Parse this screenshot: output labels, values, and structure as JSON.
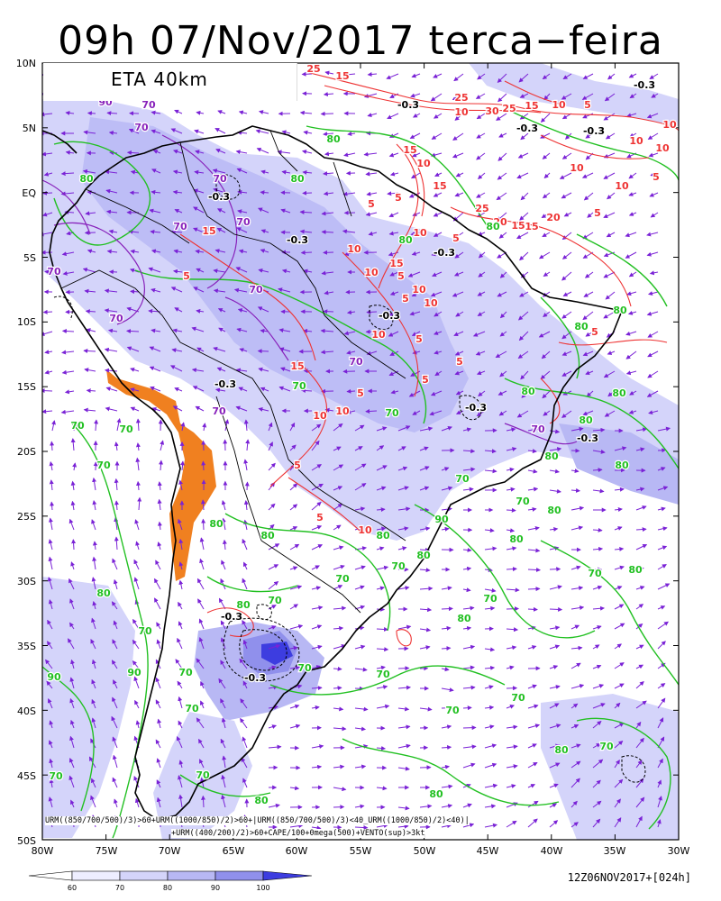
{
  "header": {
    "title": "09h 07/Nov/2017 terca−feira",
    "model_label": "ETA 40km"
  },
  "axes": {
    "lat_labels": [
      "10N",
      "5N",
      "EQ",
      "5S",
      "10S",
      "15S",
      "20S",
      "25S",
      "30S",
      "35S",
      "40S",
      "45S",
      "50S"
    ],
    "lon_labels": [
      "80W",
      "75W",
      "70W",
      "65W",
      "60W",
      "55W",
      "50W",
      "45W",
      "40W",
      "35W",
      "30W"
    ]
  },
  "map": {
    "region": "South America",
    "extent": {
      "lon": [
        -80,
        -30
      ],
      "lat": [
        -50,
        10
      ]
    },
    "contour_labels": {
      "cape_red": [
        "25",
        "15",
        "25",
        "10",
        "10",
        "30",
        "25",
        "15",
        "5",
        "10",
        "15",
        "10",
        "5",
        "5",
        "15",
        "20",
        "15",
        "10",
        "10",
        "5",
        "15",
        "10",
        "25",
        "20",
        "15",
        "5",
        "10",
        "10",
        "5",
        "5",
        "5",
        "15",
        "10",
        "15",
        "10",
        "10",
        "5",
        "5",
        "5",
        "10",
        "5",
        "10",
        "10",
        "5",
        "10",
        "5",
        "5",
        "10",
        "5"
      ],
      "urm_green": [
        "80",
        "80",
        "80",
        "80",
        "80",
        "80",
        "80",
        "80",
        "80",
        "70",
        "70",
        "70",
        "70",
        "70",
        "80",
        "80",
        "80",
        "70",
        "80",
        "70",
        "70",
        "80",
        "70",
        "80",
        "70",
        "80",
        "70",
        "80",
        "70",
        "70",
        "70",
        "90",
        "80",
        "70",
        "70",
        "80",
        "80",
        "70",
        "90",
        "90",
        "80",
        "70",
        "80",
        "70",
        "70",
        "80",
        "80",
        "80",
        "70",
        "70"
      ],
      "urm_purple": [
        "90",
        "70",
        "70",
        "70",
        "70",
        "70",
        "70",
        "70",
        "70",
        "70",
        "70",
        "70"
      ],
      "omega_black": [
        "-0.3",
        "-0.3",
        "-0.3",
        "-0.3",
        "-0.3",
        "-0.3",
        "-0.3",
        "-0.3",
        "-0.3",
        "-0.3",
        "-0.3",
        "-0.3",
        "-0.3"
      ]
    },
    "colors": {
      "shading_light": "#d4d4fa",
      "shading_mid": "#b8b8f4",
      "shading_dark": "#9090ec",
      "shading_max": "#3d3de0",
      "orange": "#f08020",
      "cape_contour": "#ee3333",
      "urm_contour": "#22c022",
      "purple_contour": "#8822bb",
      "wind_vectors": "#7a22d6",
      "coast": "#000000"
    }
  },
  "footer": {
    "expression_line1": "URM((850/700/500)/3)>60+URM((1000/850)/2)>60+|URM((850/700/500)/3)<40_URM((1000/850)/2)<40)|",
    "expression_line2": "+URM((400/200)/2)>60+CAPE/100+0mega(500)+VENTO(sup)>3kt",
    "run_stamp": "12Z06NOV2017+[024h]",
    "colorbar": {
      "ticks": [
        "60",
        "70",
        "80",
        "90",
        "100"
      ],
      "colors": [
        "#eeeeff",
        "#d4d4fa",
        "#b8b8f4",
        "#9090ec",
        "#3d3de0"
      ]
    }
  }
}
